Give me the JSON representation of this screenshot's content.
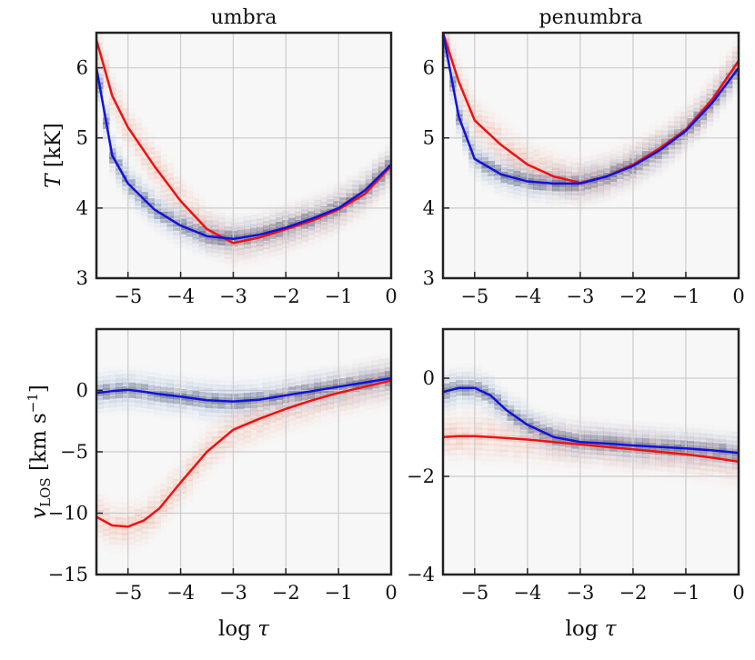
{
  "figure": {
    "xlabel_text": "log τ",
    "ylabel_top": "T [kK]",
    "ylabel_bottom": "vLOS [km s−1]"
  },
  "colors": {
    "red_line": "#ee1111",
    "blue_line": "#1111dd",
    "grid": "#cccccc",
    "frame": "#222222",
    "bg_panel": "#f7f7f7"
  },
  "chart_data": [
    {
      "type": "line",
      "title": "umbra",
      "ylabel": "T [kK]",
      "xlim": [
        -5.6,
        0
      ],
      "ylim": [
        3,
        6.5
      ],
      "xticks": [
        -5,
        -4,
        -3,
        -2,
        -1,
        0
      ],
      "yticks": [
        3,
        4,
        5,
        6
      ],
      "x": [
        -5.6,
        -5.3,
        -5.0,
        -4.5,
        -4.0,
        -3.5,
        -3.0,
        -2.5,
        -2.0,
        -1.5,
        -1.0,
        -0.5,
        0
      ],
      "series": [
        {
          "color": "red",
          "values": [
            6.4,
            5.6,
            5.15,
            4.6,
            4.1,
            3.7,
            3.5,
            3.58,
            3.7,
            3.82,
            3.98,
            4.2,
            4.6
          ]
        },
        {
          "color": "blue",
          "values": [
            6.0,
            4.75,
            4.35,
            3.98,
            3.75,
            3.6,
            3.56,
            3.62,
            3.72,
            3.85,
            4.0,
            4.25,
            4.62
          ]
        }
      ]
    },
    {
      "type": "line",
      "title": "penumbra",
      "ylabel": "",
      "xlim": [
        -5.6,
        0
      ],
      "ylim": [
        3,
        6.5
      ],
      "xticks": [
        -5,
        -4,
        -3,
        -2,
        -1,
        0
      ],
      "yticks": [
        3,
        4,
        5,
        6
      ],
      "x": [
        -5.6,
        -5.3,
        -5.0,
        -4.5,
        -4.0,
        -3.5,
        -3.0,
        -2.5,
        -2.0,
        -1.5,
        -1.0,
        -0.5,
        0
      ],
      "series": [
        {
          "color": "red",
          "values": [
            6.5,
            5.8,
            5.25,
            4.9,
            4.62,
            4.45,
            4.36,
            4.45,
            4.62,
            4.85,
            5.12,
            5.55,
            6.1
          ]
        },
        {
          "color": "blue",
          "values": [
            6.5,
            5.3,
            4.7,
            4.48,
            4.38,
            4.35,
            4.35,
            4.45,
            4.6,
            4.82,
            5.1,
            5.5,
            6.0
          ]
        }
      ]
    },
    {
      "type": "line",
      "title": "",
      "ylabel": "vLOS [km s−1]",
      "xlim": [
        -5.6,
        0
      ],
      "ylim": [
        -15,
        5
      ],
      "xticks": [
        -5,
        -4,
        -3,
        -2,
        -1,
        0
      ],
      "yticks": [
        -15,
        -10,
        -5,
        0
      ],
      "x": [
        -5.6,
        -5.3,
        -5.0,
        -4.7,
        -4.4,
        -4.0,
        -3.5,
        -3.0,
        -2.5,
        -2.0,
        -1.5,
        -1.0,
        -0.5,
        0
      ],
      "series": [
        {
          "color": "red",
          "values": [
            -10.3,
            -11.0,
            -11.1,
            -10.6,
            -9.6,
            -7.5,
            -5.0,
            -3.2,
            -2.3,
            -1.5,
            -0.8,
            -0.2,
            0.3,
            0.8
          ]
        },
        {
          "color": "blue",
          "values": [
            -0.2,
            -0.05,
            0.05,
            -0.1,
            -0.3,
            -0.5,
            -0.8,
            -0.9,
            -0.75,
            -0.4,
            -0.05,
            0.3,
            0.65,
            1.0
          ]
        }
      ]
    },
    {
      "type": "line",
      "title": "",
      "ylabel": "",
      "xlim": [
        -5.6,
        0
      ],
      "ylim": [
        -4,
        1
      ],
      "xticks": [
        -5,
        -4,
        -3,
        -2,
        -1,
        0
      ],
      "yticks": [
        -4,
        -2,
        0
      ],
      "x": [
        -5.6,
        -5.3,
        -5.0,
        -4.7,
        -4.4,
        -4.0,
        -3.5,
        -3.0,
        -2.5,
        -2.0,
        -1.5,
        -1.0,
        -0.5,
        0
      ],
      "series": [
        {
          "color": "red",
          "values": [
            -1.2,
            -1.18,
            -1.18,
            -1.2,
            -1.22,
            -1.25,
            -1.3,
            -1.35,
            -1.4,
            -1.45,
            -1.5,
            -1.55,
            -1.62,
            -1.7
          ]
        },
        {
          "color": "blue",
          "values": [
            -0.28,
            -0.2,
            -0.2,
            -0.35,
            -0.65,
            -0.95,
            -1.2,
            -1.3,
            -1.33,
            -1.37,
            -1.4,
            -1.43,
            -1.47,
            -1.52
          ]
        }
      ]
    }
  ]
}
